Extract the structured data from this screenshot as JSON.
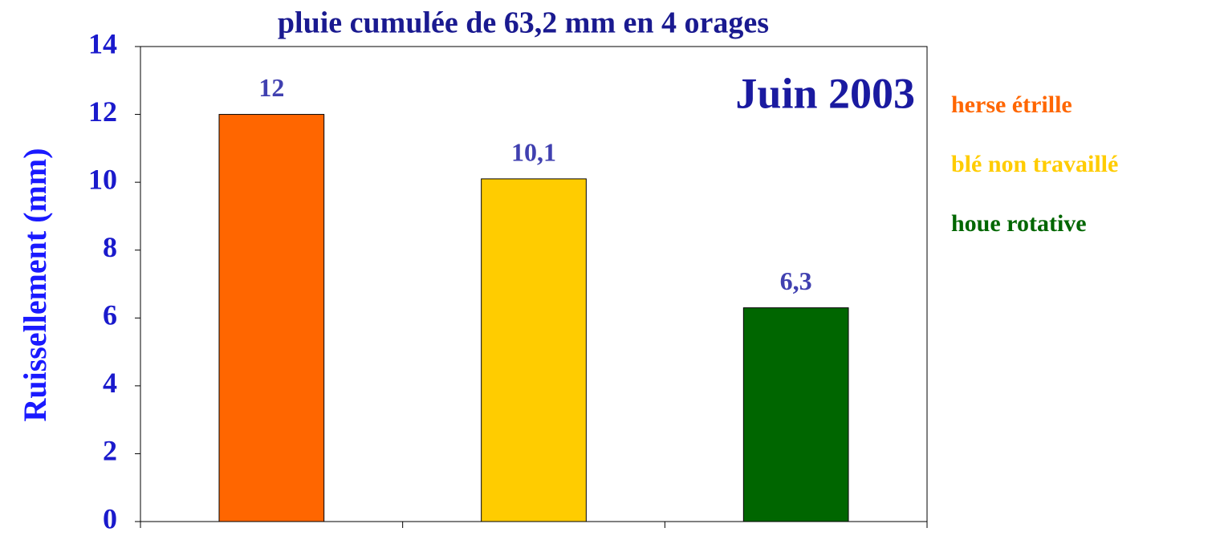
{
  "chart_data": {
    "type": "bar",
    "title": "pluie cumulée de 63,2 mm en 4 orages",
    "annotation": "Juin 2003",
    "y_label": "Ruissellement (mm)",
    "categories": [
      "herse étrille",
      "blé non travaillé",
      "houe rotative"
    ],
    "values": [
      12,
      10.1,
      6.3
    ],
    "value_labels": [
      "12",
      "10,1",
      "6,3"
    ],
    "colors": [
      "#ff6600",
      "#ffcc00",
      "#006600"
    ],
    "ylim": [
      0,
      14
    ],
    "yticks": [
      0,
      2,
      4,
      6,
      8,
      10,
      12,
      14
    ],
    "grid": false,
    "legend": "right"
  }
}
